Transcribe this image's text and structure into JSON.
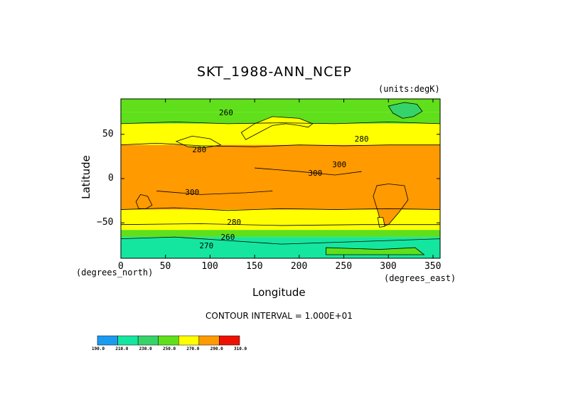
{
  "chart_data": {
    "type": "heatmap",
    "title": "SKT_1988-ANN_NCEP",
    "units_note": "(units:degK)",
    "xlabel": "Longitude",
    "ylabel": "Latitude",
    "x_unit_note": "(degrees_east)",
    "y_unit_note": "(degrees_north)",
    "xlim": [
      0,
      358
    ],
    "ylim": [
      -90,
      90
    ],
    "x_ticks": [
      0,
      50,
      100,
      150,
      200,
      250,
      300,
      350
    ],
    "x_tick_labels": [
      "0",
      "50",
      "100",
      "150",
      "200",
      "250",
      "300",
      "350"
    ],
    "y_ticks": [
      50,
      0,
      -50
    ],
    "y_tick_labels": [
      "50",
      "0",
      "−50"
    ],
    "contour_interval_text": "CONTOUR INTERVAL = 1.000E+01",
    "contour_labels": [
      {
        "text": "260",
        "lon": 118,
        "lat": 74
      },
      {
        "text": "280",
        "lon": 88,
        "lat": 32
      },
      {
        "text": "280",
        "lon": 270,
        "lat": 44
      },
      {
        "text": "300",
        "lon": 218,
        "lat": 6
      },
      {
        "text": "300",
        "lon": 245,
        "lat": 15
      },
      {
        "text": "300",
        "lon": 80,
        "lat": -16
      },
      {
        "text": "280",
        "lon": 127,
        "lat": -50
      },
      {
        "text": "260",
        "lon": 120,
        "lat": -67
      },
      {
        "text": "270",
        "lon": 96,
        "lat": -76
      }
    ],
    "zonal_mean_band_edges": [
      {
        "lat_from": 90,
        "lat_to": 75,
        "value": 260
      },
      {
        "lat_from": 75,
        "lat_to": 62,
        "value": 265
      },
      {
        "lat_from": 62,
        "lat_to": 38,
        "value": 285
      },
      {
        "lat_from": 38,
        "lat_to": -35,
        "value": 300
      },
      {
        "lat_from": -35,
        "lat_to": -52,
        "value": 285
      },
      {
        "lat_from": -52,
        "lat_to": -58,
        "value": 275
      },
      {
        "lat_from": -58,
        "lat_to": -66,
        "value": 265
      },
      {
        "lat_from": -66,
        "lat_to": -90,
        "value": 225
      }
    ],
    "colorbar": {
      "levels": [
        "190.0",
        "210.0",
        "230.0",
        "250.0",
        "270.0",
        "290.0",
        "310.0"
      ],
      "colors": [
        "#1a9bf0",
        "#14e6a0",
        "#36d36a",
        "#5fe01a",
        "#ffff00",
        "#ff9a00",
        "#ee1100"
      ]
    }
  }
}
